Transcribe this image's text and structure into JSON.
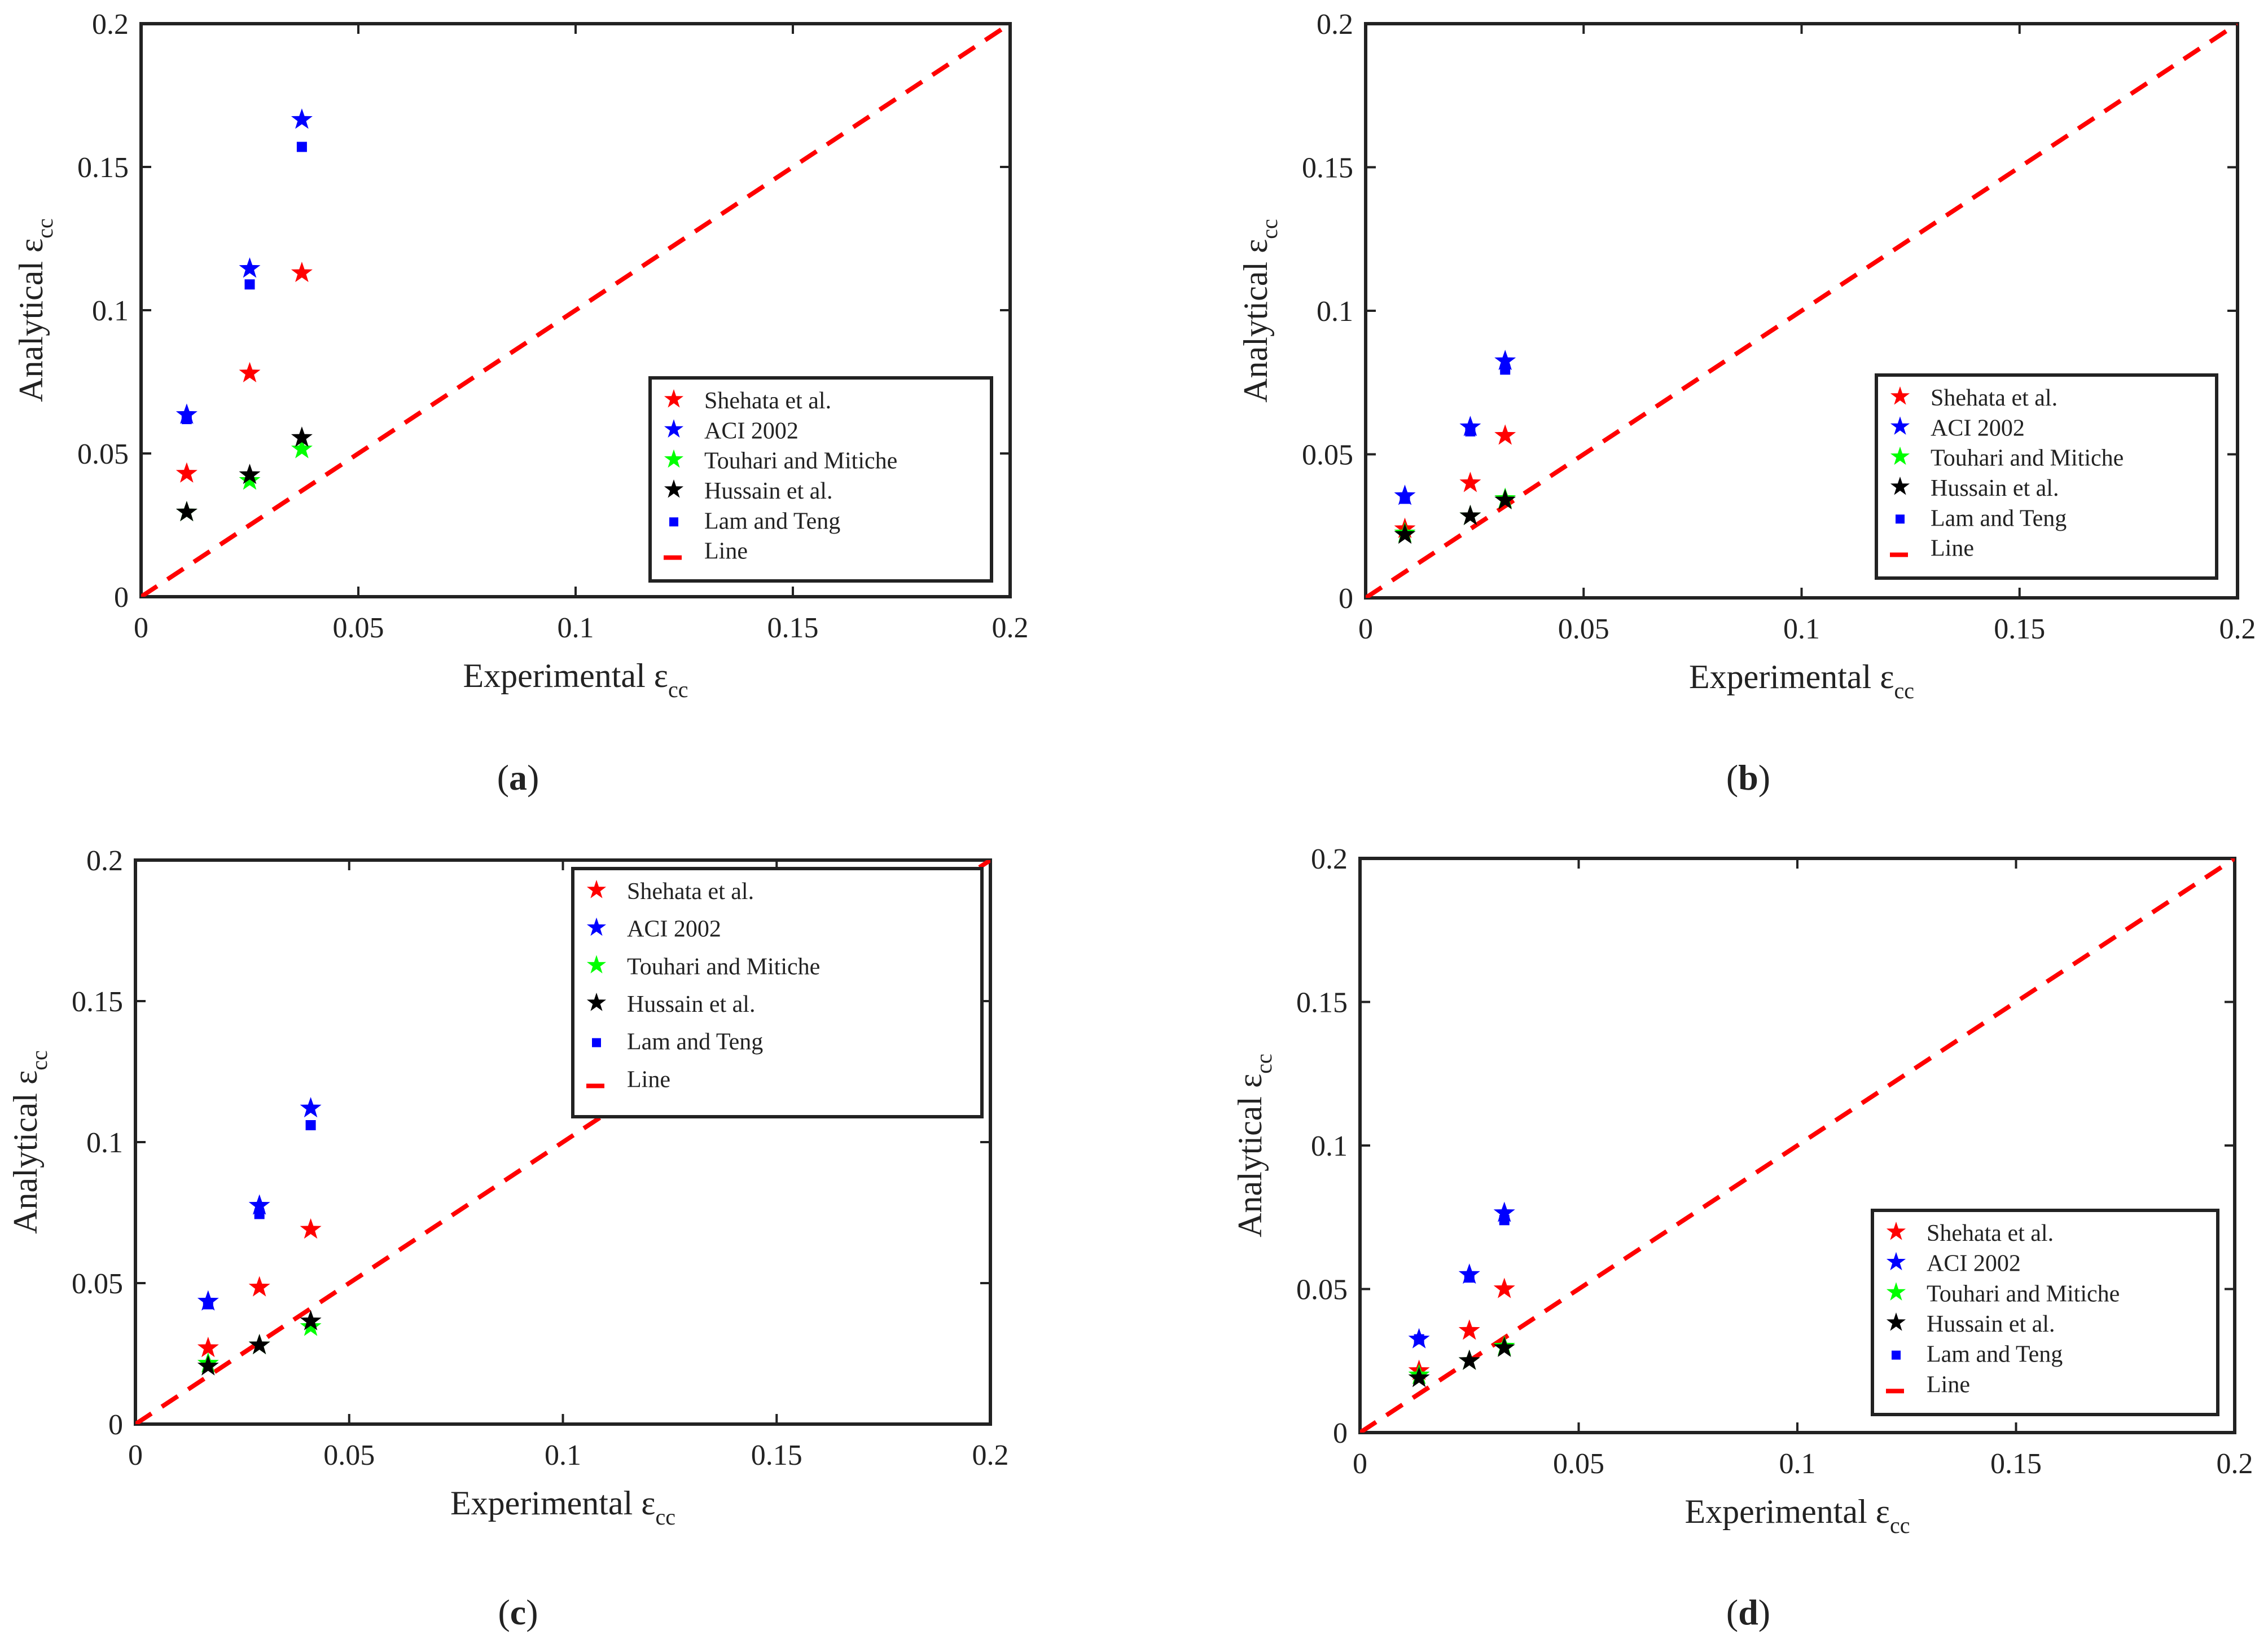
{
  "figure": {
    "panel_label_format": "({label})"
  },
  "colors": {
    "shehata": "#ff0000",
    "aci": "#0000ff",
    "touhari": "#00ff00",
    "hussain": "#000000",
    "lam": "#0000ff",
    "line": "#ff0000",
    "axes": "#222222"
  },
  "chart_data": [
    {
      "type": "scatter",
      "panel": "a",
      "xlabel": "Experimental ε",
      "xlabel_sub": "cc",
      "ylabel": "Analytical ε",
      "ylabel_sub": "cc",
      "xlim": [
        0,
        0.2
      ],
      "ylim": [
        0,
        0.2
      ],
      "xticks": [
        0,
        0.05,
        0.1,
        0.15,
        0.2
      ],
      "yticks": [
        0,
        0.05,
        0.1,
        0.15,
        0.2
      ],
      "xtick_labels": [
        "0",
        "0.05",
        "0.1",
        "0.15",
        "0.2"
      ],
      "ytick_labels": [
        "0",
        "0.05",
        "0.1",
        "0.15",
        "0.2"
      ],
      "legend_position": "lower-right",
      "series": [
        {
          "name": "Shehata et al.",
          "marker": "star",
          "color": "#ff0000",
          "x": [
            0.0105,
            0.025,
            0.037
          ],
          "y": [
            0.043,
            0.078,
            0.113
          ]
        },
        {
          "name": "ACI 2002",
          "marker": "star",
          "color": "#0000ff",
          "x": [
            0.0105,
            0.025,
            0.037
          ],
          "y": [
            0.0635,
            0.1145,
            0.1665
          ]
        },
        {
          "name": "Touhari and Mitiche",
          "marker": "star",
          "color": "#00ff00",
          "x": [
            0.0105,
            0.025,
            0.037
          ],
          "y": [
            0.0295,
            0.0405,
            0.0515
          ]
        },
        {
          "name": "Hussain et al.",
          "marker": "star",
          "color": "#000000",
          "x": [
            0.0105,
            0.025,
            0.037
          ],
          "y": [
            0.0295,
            0.0425,
            0.0555
          ]
        },
        {
          "name": "Lam and Teng",
          "marker": "square",
          "color": "#0000ff",
          "x": [
            0.0105,
            0.025,
            0.037
          ],
          "y": [
            0.062,
            0.109,
            0.157
          ]
        },
        {
          "name": "Line",
          "marker": "dash",
          "color": "#ff0000",
          "x": [
            0,
            0.2
          ],
          "y": [
            0,
            0.2
          ]
        }
      ]
    },
    {
      "type": "scatter",
      "panel": "b",
      "xlabel": "Experimental ε",
      "xlabel_sub": "cc",
      "ylabel": "Analytical ε",
      "ylabel_sub": "cc",
      "xlim": [
        0,
        0.2
      ],
      "ylim": [
        0,
        0.2
      ],
      "xticks": [
        0,
        0.05,
        0.1,
        0.15,
        0.2
      ],
      "yticks": [
        0,
        0.05,
        0.1,
        0.15,
        0.2
      ],
      "xtick_labels": [
        "0",
        "0.05",
        "0.1",
        "0.15",
        "0.2"
      ],
      "ytick_labels": [
        "0",
        "0.05",
        "0.1",
        "0.15",
        "0.2"
      ],
      "legend_position": "lower-right",
      "series": [
        {
          "name": "Shehata et al.",
          "marker": "star",
          "color": "#ff0000",
          "x": [
            0.009,
            0.024,
            0.032
          ],
          "y": [
            0.024,
            0.04,
            0.0565
          ]
        },
        {
          "name": "ACI 2002",
          "marker": "star",
          "color": "#0000ff",
          "x": [
            0.009,
            0.024,
            0.032
          ],
          "y": [
            0.0355,
            0.0595,
            0.0825
          ]
        },
        {
          "name": "Touhari and Mitiche",
          "marker": "star",
          "color": "#00ff00",
          "x": [
            0.009,
            0.024,
            0.032
          ],
          "y": [
            0.0225,
            0.0285,
            0.0345
          ]
        },
        {
          "name": "Hussain et al.",
          "marker": "star",
          "color": "#000000",
          "x": [
            0.009,
            0.024,
            0.032
          ],
          "y": [
            0.022,
            0.0285,
            0.034
          ]
        },
        {
          "name": "Lam and Teng",
          "marker": "square",
          "color": "#0000ff",
          "x": [
            0.009,
            0.024,
            0.032
          ],
          "y": [
            0.0345,
            0.058,
            0.0795
          ]
        },
        {
          "name": "Line",
          "marker": "dash",
          "color": "#ff0000",
          "x": [
            0,
            0.2
          ],
          "y": [
            0,
            0.2
          ]
        }
      ]
    },
    {
      "type": "scatter",
      "panel": "c",
      "xlabel": "Experimental ε",
      "xlabel_sub": "cc",
      "ylabel": "Analytical ε",
      "ylabel_sub": "cc",
      "xlim": [
        0,
        0.2
      ],
      "ylim": [
        0,
        0.2
      ],
      "xticks": [
        0,
        0.05,
        0.1,
        0.15,
        0.2
      ],
      "yticks": [
        0,
        0.05,
        0.1,
        0.15,
        0.2
      ],
      "xtick_labels": [
        "0",
        "0.05",
        "0.1",
        "0.15",
        "0.2"
      ],
      "ytick_labels": [
        "0",
        "0.05",
        "0.1",
        "0.15",
        "0.2"
      ],
      "legend_position": "upper-right",
      "series": [
        {
          "name": "Shehata et al.",
          "marker": "star",
          "color": "#ff0000",
          "x": [
            0.017,
            0.029,
            0.041
          ],
          "y": [
            0.027,
            0.0485,
            0.069
          ]
        },
        {
          "name": "ACI 2002",
          "marker": "star",
          "color": "#0000ff",
          "x": [
            0.017,
            0.029,
            0.041
          ],
          "y": [
            0.0435,
            0.0775,
            0.112
          ]
        },
        {
          "name": "Touhari and Mitiche",
          "marker": "star",
          "color": "#00ff00",
          "x": [
            0.017,
            0.029,
            0.041
          ],
          "y": [
            0.0215,
            0.028,
            0.0345
          ]
        },
        {
          "name": "Hussain et al.",
          "marker": "star",
          "color": "#000000",
          "x": [
            0.017,
            0.029,
            0.041
          ],
          "y": [
            0.0205,
            0.028,
            0.0365
          ]
        },
        {
          "name": "Lam and Teng",
          "marker": "square",
          "color": "#0000ff",
          "x": [
            0.017,
            0.029,
            0.041
          ],
          "y": [
            0.0425,
            0.0745,
            0.106
          ]
        },
        {
          "name": "Line",
          "marker": "dash",
          "color": "#ff0000",
          "x": [
            0,
            0.2
          ],
          "y": [
            0,
            0.2
          ]
        }
      ]
    },
    {
      "type": "scatter",
      "panel": "d",
      "xlabel": "Experimental ε",
      "xlabel_sub": "cc",
      "ylabel": "Analytical ε",
      "ylabel_sub": "cc",
      "xlim": [
        0,
        0.2
      ],
      "ylim": [
        0,
        0.2
      ],
      "xticks": [
        0,
        0.05,
        0.1,
        0.15,
        0.2
      ],
      "yticks": [
        0,
        0.05,
        0.1,
        0.15,
        0.2
      ],
      "xtick_labels": [
        "0",
        "0.05",
        "0.1",
        "0.15",
        "0.2"
      ],
      "ytick_labels": [
        "0",
        "0.05",
        "0.1",
        "0.15",
        "0.2"
      ],
      "legend_position": "lower-right",
      "series": [
        {
          "name": "Shehata et al.",
          "marker": "star",
          "color": "#ff0000",
          "x": [
            0.0135,
            0.025,
            0.033
          ],
          "y": [
            0.0215,
            0.0355,
            0.05
          ]
        },
        {
          "name": "ACI 2002",
          "marker": "star",
          "color": "#0000ff",
          "x": [
            0.0135,
            0.025,
            0.033
          ],
          "y": [
            0.0325,
            0.055,
            0.0765
          ]
        },
        {
          "name": "Touhari and Mitiche",
          "marker": "star",
          "color": "#00ff00",
          "x": [
            0.0135,
            0.025,
            0.033
          ],
          "y": [
            0.02,
            0.025,
            0.03
          ]
        },
        {
          "name": "Hussain et al.",
          "marker": "star",
          "color": "#000000",
          "x": [
            0.0135,
            0.025,
            0.033
          ],
          "y": [
            0.019,
            0.025,
            0.0295
          ]
        },
        {
          "name": "Lam and Teng",
          "marker": "square",
          "color": "#0000ff",
          "x": [
            0.0135,
            0.025,
            0.033
          ],
          "y": [
            0.0325,
            0.054,
            0.074
          ]
        },
        {
          "name": "Line",
          "marker": "dash",
          "color": "#ff0000",
          "x": [
            0,
            0.2
          ],
          "y": [
            0,
            0.2
          ]
        }
      ]
    }
  ]
}
